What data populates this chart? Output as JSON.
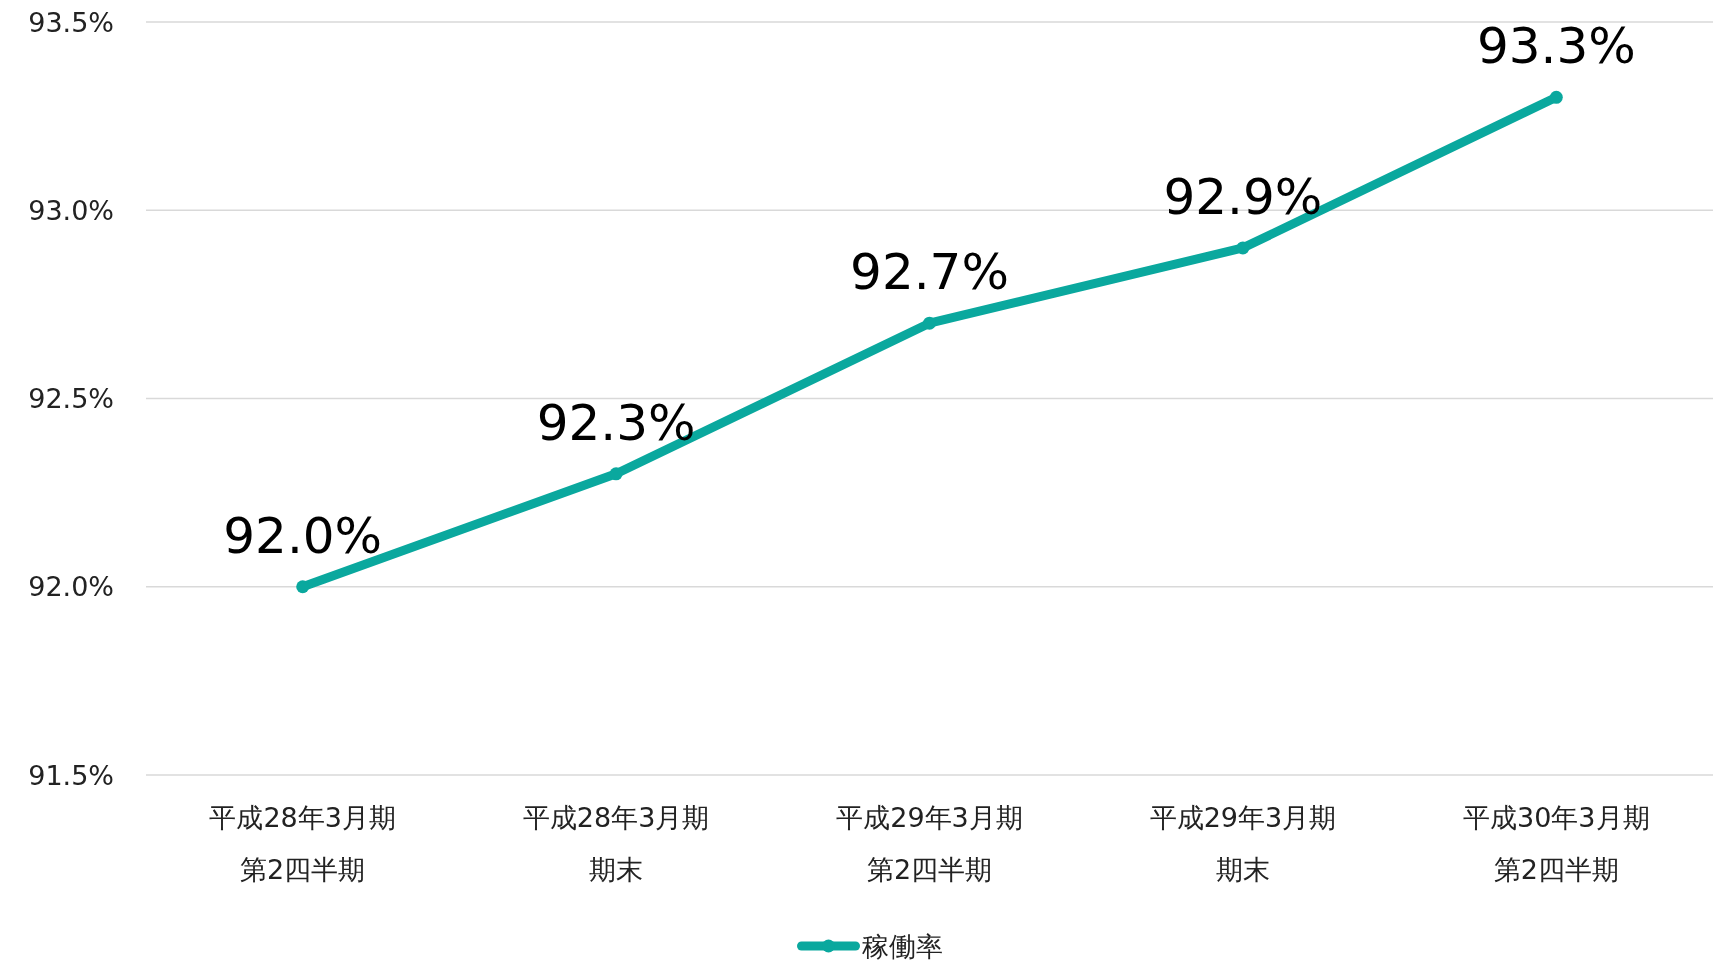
{
  "chart_data": {
    "type": "line",
    "categories": [
      "平成28年3月期第2四半期",
      "平成28年3月期期末",
      "平成29年3月期第2四半期",
      "平成29年3月期期末",
      "平成30年3月期第2四半期"
    ],
    "series": [
      {
        "name": "稼働率",
        "color": "#0aa89e",
        "values": [
          92.0,
          92.3,
          92.7,
          92.9,
          93.3
        ],
        "value_labels": [
          "92.0%",
          "92.3%",
          "92.7%",
          "92.9%",
          "93.3%"
        ]
      }
    ],
    "ylim": [
      91.5,
      93.5
    ],
    "yticks": [
      {
        "value": 91.5,
        "label": "91.5%"
      },
      {
        "value": 92.0,
        "label": "92.0%"
      },
      {
        "value": 92.5,
        "label": "92.5%"
      },
      {
        "value": 93.0,
        "label": "93.0%"
      },
      {
        "value": 93.5,
        "label": "93.5%"
      }
    ],
    "grid": "y",
    "legend": "bottom",
    "marker": "circle"
  }
}
